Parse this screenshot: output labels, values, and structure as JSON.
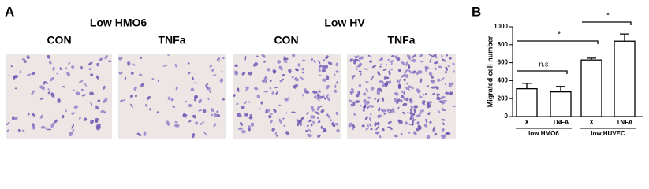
{
  "panel_a": {
    "label": "A",
    "groups": [
      {
        "title": "Low HMO6",
        "conditions": [
          "CON",
          "TNFa"
        ]
      },
      {
        "title": "Low HV",
        "conditions": [
          "CON",
          "TNFa"
        ]
      }
    ]
  },
  "chart_data": {
    "type": "bar",
    "panel_label": "B",
    "y_label": "Migrated cell number",
    "categories": [
      "X",
      "TNFA",
      "X",
      "TNFA"
    ],
    "groups": [
      "low HMO6",
      "low HUVEC"
    ],
    "values": [
      310,
      275,
      630,
      840
    ],
    "errors": [
      60,
      60,
      20,
      80
    ],
    "color": "#ffffff",
    "ylim": [
      0,
      1000
    ],
    "yticks": [
      0,
      200,
      400,
      600,
      800,
      1000
    ],
    "annotations": [
      "n.s",
      "*",
      "*"
    ]
  }
}
